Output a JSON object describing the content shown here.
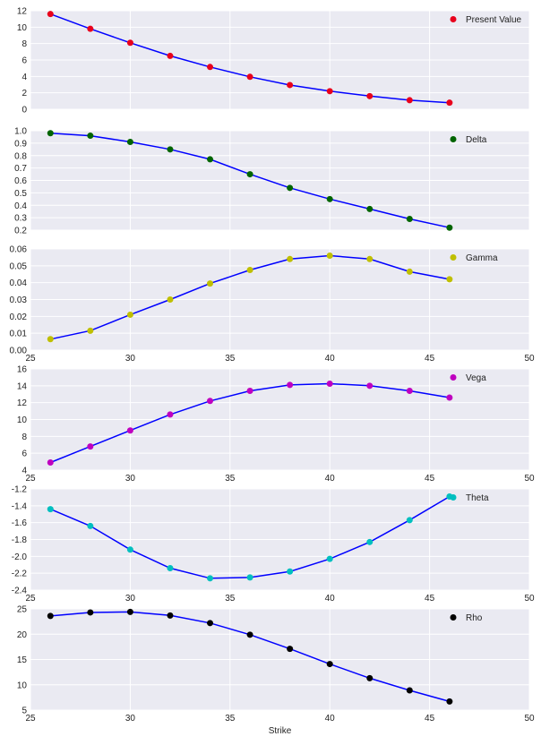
{
  "chart_data": [
    {
      "type": "scatter",
      "x": [
        26,
        28,
        30,
        32,
        34,
        36,
        38,
        40,
        42,
        44,
        46
      ],
      "series": [
        {
          "name": "Present Value",
          "values": [
            11.6,
            9.8,
            8.1,
            6.5,
            5.15,
            3.95,
            2.95,
            2.2,
            1.6,
            1.1,
            0.8
          ],
          "marker_color": "#E8001C",
          "line_color": "#0000FF"
        }
      ],
      "xlim": [
        25,
        50
      ],
      "ylim": [
        0,
        12
      ],
      "yticks": [
        "0",
        "2",
        "4",
        "6",
        "8",
        "10",
        "12"
      ],
      "xticks": [],
      "grid": true,
      "legend": "top-right",
      "xlabel": "",
      "ylabel": ""
    },
    {
      "type": "scatter",
      "x": [
        26,
        28,
        30,
        32,
        34,
        36,
        38,
        40,
        42,
        44,
        46
      ],
      "series": [
        {
          "name": "Delta",
          "values": [
            0.98,
            0.96,
            0.91,
            0.85,
            0.77,
            0.65,
            0.54,
            0.45,
            0.37,
            0.29,
            0.22
          ],
          "marker_color": "#006400",
          "line_color": "#0000FF"
        }
      ],
      "xlim": [
        25,
        50
      ],
      "ylim": [
        0.2,
        1.0
      ],
      "yticks": [
        "0.2",
        "0.3",
        "0.4",
        "0.5",
        "0.6",
        "0.7",
        "0.8",
        "0.9",
        "1.0"
      ],
      "xticks": [],
      "grid": true,
      "legend": "top-right",
      "xlabel": "",
      "ylabel": ""
    },
    {
      "type": "scatter",
      "x": [
        26,
        28,
        30,
        32,
        34,
        36,
        38,
        40,
        42,
        44,
        46
      ],
      "series": [
        {
          "name": "Gamma",
          "values": [
            0.0065,
            0.0115,
            0.021,
            0.03,
            0.0395,
            0.0475,
            0.054,
            0.056,
            0.054,
            0.0465,
            0.042
          ],
          "marker_color": "#BFBF00",
          "line_color": "#0000FF"
        }
      ],
      "xlim": [
        25,
        50
      ],
      "ylim": [
        0,
        0.06
      ],
      "yticks": [
        "0.00",
        "0.01",
        "0.02",
        "0.03",
        "0.04",
        "0.05",
        "0.06"
      ],
      "xticks": [
        "25",
        "30",
        "35",
        "40",
        "45",
        "50"
      ],
      "grid": true,
      "legend": "top-right",
      "xlabel": "",
      "ylabel": ""
    },
    {
      "type": "scatter",
      "x": [
        26,
        28,
        30,
        32,
        34,
        36,
        38,
        40,
        42,
        44,
        46
      ],
      "series": [
        {
          "name": "Vega",
          "values": [
            4.9,
            6.8,
            8.7,
            10.6,
            12.2,
            13.4,
            14.1,
            14.25,
            14.0,
            13.4,
            12.6
          ],
          "marker_color": "#BF00BF",
          "line_color": "#0000FF"
        }
      ],
      "xlim": [
        25,
        50
      ],
      "ylim": [
        4,
        16
      ],
      "yticks": [
        "4",
        "6",
        "8",
        "10",
        "12",
        "14",
        "16"
      ],
      "xticks": [
        "25",
        "30",
        "35",
        "40",
        "45",
        "50"
      ],
      "grid": true,
      "legend": "top-right",
      "xlabel": "",
      "ylabel": ""
    },
    {
      "type": "scatter",
      "x": [
        26,
        28,
        30,
        32,
        34,
        36,
        38,
        40,
        42,
        44,
        46
      ],
      "series": [
        {
          "name": "Theta",
          "values": [
            -1.44,
            -1.64,
            -1.92,
            -2.14,
            -2.26,
            -2.25,
            -2.18,
            -2.03,
            -1.83,
            -1.57,
            -1.29
          ],
          "marker_color": "#00BFBF",
          "line_color": "#0000FF"
        }
      ],
      "xlim": [
        25,
        50
      ],
      "ylim": [
        -2.4,
        -1.2
      ],
      "yticks": [
        "-2.4",
        "-2.2",
        "-2.0",
        "-1.8",
        "-1.6",
        "-1.4",
        "-1.2"
      ],
      "xticks": [
        "25",
        "30",
        "35",
        "40",
        "45",
        "50"
      ],
      "grid": true,
      "legend": "top-right",
      "xlabel": "",
      "ylabel": ""
    },
    {
      "type": "scatter",
      "x": [
        26,
        28,
        30,
        32,
        34,
        36,
        38,
        40,
        42,
        44,
        46
      ],
      "series": [
        {
          "name": "Rho",
          "values": [
            23.6,
            24.3,
            24.4,
            23.7,
            22.2,
            19.9,
            17.1,
            14.1,
            11.3,
            8.9,
            6.7
          ],
          "marker_color": "#000000",
          "line_color": "#0000FF"
        }
      ],
      "xlim": [
        25,
        50
      ],
      "ylim": [
        5,
        25
      ],
      "yticks": [
        "5",
        "10",
        "15",
        "20",
        "25"
      ],
      "xticks": [
        "25",
        "30",
        "35",
        "40",
        "45",
        "50"
      ],
      "grid": true,
      "legend": "top-right",
      "xlabel": "Strike",
      "ylabel": ""
    }
  ]
}
